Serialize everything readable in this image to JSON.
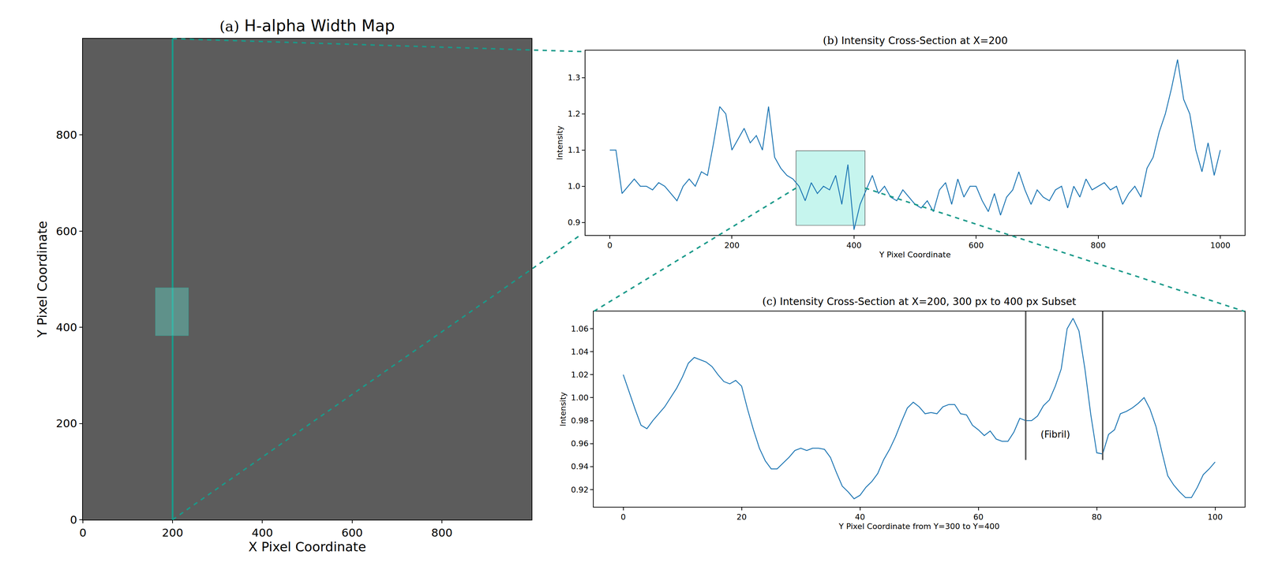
{
  "chart_data": [
    {
      "type": "image",
      "panel": "(a)",
      "title": "H-alpha Width Map",
      "x_label": "X Pixel Coordinate",
      "y_label": "Y Pixel Coordinate",
      "xlim": [
        0,
        1000
      ],
      "ylim": [
        0,
        1000
      ],
      "xticks": [
        0,
        200,
        400,
        600,
        800
      ],
      "yticks": [
        0,
        200,
        400,
        600,
        800
      ],
      "cut_line_x": 200,
      "highlight": {
        "x": [
          162,
          235
        ],
        "y": [
          383,
          482
        ]
      },
      "color": "#1a9a8a"
    },
    {
      "type": "line",
      "panel": "(b)",
      "title": "Intensity Cross-Section at X=200",
      "x_label": "Y Pixel Coordinate",
      "y_label": "Intensity",
      "color": "#1f77b4",
      "x": [
        0,
        10,
        20,
        30,
        40,
        50,
        60,
        70,
        80,
        90,
        100,
        110,
        120,
        130,
        140,
        150,
        160,
        170,
        180,
        190,
        200,
        210,
        220,
        230,
        240,
        250,
        260,
        270,
        280,
        290,
        300,
        310,
        320,
        330,
        340,
        350,
        360,
        370,
        380,
        390,
        400,
        410,
        420,
        430,
        440,
        450,
        460,
        470,
        480,
        490,
        500,
        510,
        520,
        530,
        540,
        550,
        560,
        570,
        580,
        590,
        600,
        610,
        620,
        630,
        640,
        650,
        660,
        670,
        680,
        690,
        700,
        710,
        720,
        730,
        740,
        750,
        760,
        770,
        780,
        790,
        800,
        810,
        820,
        830,
        840,
        850,
        860,
        870,
        880,
        890,
        900,
        910,
        920,
        930,
        940,
        950,
        960,
        970,
        980,
        990,
        1000
      ],
      "values": [
        1.1,
        1.1,
        0.98,
        1.0,
        1.02,
        1.0,
        1.0,
        0.99,
        1.01,
        1.0,
        0.98,
        0.96,
        1.0,
        1.02,
        1.0,
        1.04,
        1.03,
        1.12,
        1.22,
        1.2,
        1.1,
        1.13,
        1.16,
        1.12,
        1.14,
        1.1,
        1.22,
        1.08,
        1.05,
        1.03,
        1.02,
        1.0,
        0.96,
        1.01,
        0.98,
        1.0,
        0.99,
        1.03,
        0.95,
        1.06,
        0.88,
        0.95,
        0.99,
        1.03,
        0.98,
        1.0,
        0.97,
        0.96,
        0.99,
        0.97,
        0.95,
        0.94,
        0.96,
        0.93,
        0.99,
        1.01,
        0.95,
        1.02,
        0.97,
        1.0,
        1.0,
        0.96,
        0.93,
        0.98,
        0.92,
        0.97,
        0.99,
        1.04,
        0.99,
        0.95,
        0.99,
        0.97,
        0.96,
        0.99,
        1.0,
        0.94,
        1.0,
        0.97,
        1.02,
        0.99,
        1.0,
        1.01,
        0.99,
        1.0,
        0.95,
        0.98,
        1.0,
        0.97,
        1.05,
        1.08,
        1.15,
        1.2,
        1.27,
        1.35,
        1.24,
        1.2,
        1.1,
        1.04,
        1.12,
        1.03,
        1.1
      ],
      "xlim": [
        -40,
        1040
      ],
      "ylim": [
        0.865,
        1.375
      ],
      "xticks": [
        0,
        200,
        400,
        600,
        800,
        1000
      ],
      "yticks": [
        0.9,
        {
          "value": 1,
          "label": "1.0"
        },
        1.1,
        1.2,
        1.3
      ],
      "highlight": {
        "x": [
          305,
          418
        ],
        "y": [
          0.892,
          1.098
        ]
      }
    },
    {
      "type": "line",
      "panel": "(c)",
      "title": "Intensity Cross-Section at X=200, 300 px to 400 px Subset",
      "x_label": "Y Pixel Coordinate from Y=300 to Y=400",
      "y_label": "Intensity",
      "color": "#1f77b4",
      "x": [
        0,
        1,
        2,
        3,
        4,
        5,
        6,
        7,
        8,
        9,
        10,
        11,
        12,
        13,
        14,
        15,
        16,
        17,
        18,
        19,
        20,
        21,
        22,
        23,
        24,
        25,
        26,
        27,
        28,
        29,
        30,
        31,
        32,
        33,
        34,
        35,
        36,
        37,
        38,
        39,
        40,
        41,
        42,
        43,
        44,
        45,
        46,
        47,
        48,
        49,
        50,
        51,
        52,
        53,
        54,
        55,
        56,
        57,
        58,
        59,
        60,
        61,
        62,
        63,
        64,
        65,
        66,
        67,
        68,
        69,
        70,
        71,
        72,
        73,
        74,
        75,
        76,
        77,
        78,
        79,
        80,
        81,
        82,
        83,
        84,
        85,
        86,
        87,
        88,
        89,
        90,
        91,
        92,
        93,
        94,
        95,
        96,
        97,
        98,
        99,
        100
      ],
      "values": [
        1.02,
        1.005,
        0.99,
        0.976,
        0.973,
        0.98,
        0.986,
        0.992,
        1.0,
        1.008,
        1.018,
        1.03,
        1.035,
        1.033,
        1.031,
        1.027,
        1.02,
        1.014,
        1.012,
        1.015,
        1.01,
        0.99,
        0.972,
        0.956,
        0.945,
        0.938,
        0.938,
        0.943,
        0.948,
        0.954,
        0.956,
        0.954,
        0.956,
        0.956,
        0.955,
        0.948,
        0.935,
        0.923,
        0.918,
        0.912,
        0.915,
        0.922,
        0.927,
        0.934,
        0.946,
        0.955,
        0.966,
        0.979,
        0.991,
        0.996,
        0.992,
        0.986,
        0.987,
        0.986,
        0.992,
        0.994,
        0.994,
        0.986,
        0.985,
        0.976,
        0.972,
        0.967,
        0.971,
        0.964,
        0.962,
        0.962,
        0.97,
        0.982,
        0.98,
        0.98,
        0.984,
        0.993,
        0.998,
        1.01,
        1.025,
        1.06,
        1.069,
        1.058,
        1.025,
        0.985,
        0.952,
        0.951,
        0.968,
        0.972,
        0.986,
        0.988,
        0.991,
        0.995,
        1.0,
        0.99,
        0.975,
        0.953,
        0.932,
        0.924,
        0.918,
        0.913,
        0.913,
        0.922,
        0.933,
        0.938,
        0.944
      ],
      "xlim": [
        -5,
        105
      ],
      "ylim": [
        0.905,
        1.075
      ],
      "xticks": [
        0,
        20,
        40,
        60,
        80,
        100
      ],
      "yticks": [
        0.92,
        0.94,
        0.96,
        0.98,
        {
          "value": 1,
          "label": "1.00"
        },
        1.02,
        1.04,
        1.06
      ],
      "annotation": {
        "text": "(Fibril)",
        "x": 73,
        "y": 0.968
      },
      "fibril_bounds": [
        68,
        81
      ]
    }
  ]
}
